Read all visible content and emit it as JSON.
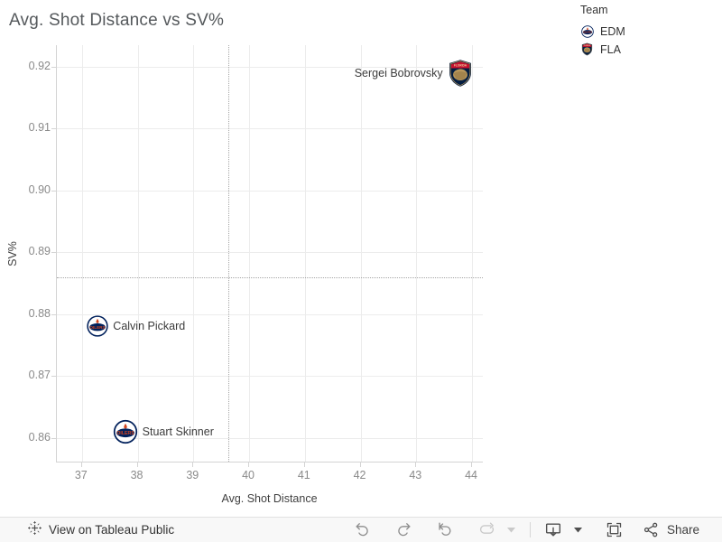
{
  "title": "Avg. Shot Distance vs SV%",
  "legend": {
    "title": "Team",
    "items": [
      {
        "label": "EDM",
        "team": "EDM"
      },
      {
        "label": "FLA",
        "team": "FLA"
      }
    ]
  },
  "team_colors": {
    "EDM": {
      "primary": "#00205b",
      "accent": "#d14520"
    },
    "FLA": {
      "primary": "#041e42",
      "accent": "#c8102e",
      "gold": "#b9975b"
    }
  },
  "chart_data": {
    "type": "scatter",
    "title": "Avg. Shot Distance vs SV%",
    "xlabel": "Avg. Shot Distance",
    "ylabel": "SV%",
    "x_ticks": [
      37,
      38,
      39,
      40,
      41,
      42,
      43,
      44
    ],
    "y_tick_labels": [
      "0.86",
      "0.87",
      "0.88",
      "0.89",
      "0.90",
      "0.91",
      "0.92"
    ],
    "xlim": [
      36.55,
      44.21
    ],
    "ylim": [
      0.856,
      0.9235
    ],
    "grid": true,
    "legend_position": "top-right",
    "reference_lines": {
      "x": 39.63,
      "y": 0.886,
      "style": "dotted"
    },
    "points": [
      {
        "name": "Sergei Bobrovsky",
        "team": "FLA",
        "x": 43.8,
        "y": 0.919,
        "label_side": "left",
        "size": 28
      },
      {
        "name": "Calvin Pickard",
        "team": "EDM",
        "x": 37.3,
        "y": 0.878,
        "label_side": "right",
        "size": 24
      },
      {
        "name": "Stuart Skinner",
        "team": "EDM",
        "x": 37.8,
        "y": 0.861,
        "label_side": "right",
        "size": 27
      }
    ]
  },
  "toolbar": {
    "view_label": "View on Tableau Public",
    "share_label": "Share",
    "icons": [
      "tableau-logo",
      "undo",
      "redo",
      "revert",
      "refresh",
      "caret-down",
      "download",
      "fullscreen",
      "share"
    ]
  }
}
